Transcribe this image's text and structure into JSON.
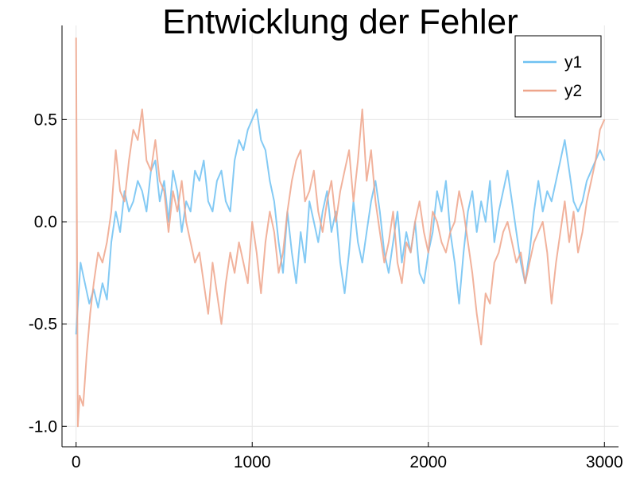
{
  "chart_data": {
    "type": "line",
    "title": "Entwicklung der Fehler",
    "xlabel": "",
    "ylabel": "",
    "xlim": [
      -80,
      3080
    ],
    "ylim": [
      -1.1,
      0.96
    ],
    "x_ticks": [
      0,
      1000,
      2000,
      3000
    ],
    "x_tick_labels": [
      "0",
      "1000",
      "2000",
      "3000"
    ],
    "y_ticks": [
      -1.0,
      -0.5,
      0.0,
      0.5
    ],
    "y_tick_labels": [
      "-1.0",
      "-0.5",
      "0.0",
      "0.5"
    ],
    "grid": true,
    "legend_position": "top-right",
    "series": [
      {
        "name": "y1",
        "color": "#6fc1f2",
        "x": [
          0,
          25,
          50,
          75,
          100,
          125,
          150,
          175,
          200,
          225,
          250,
          275,
          300,
          325,
          350,
          375,
          400,
          425,
          450,
          475,
          500,
          525,
          550,
          575,
          600,
          625,
          650,
          675,
          700,
          725,
          750,
          775,
          800,
          825,
          850,
          875,
          900,
          925,
          950,
          975,
          1000,
          1025,
          1050,
          1075,
          1100,
          1125,
          1150,
          1175,
          1200,
          1225,
          1250,
          1275,
          1300,
          1325,
          1350,
          1375,
          1400,
          1425,
          1450,
          1475,
          1500,
          1525,
          1550,
          1575,
          1600,
          1625,
          1650,
          1675,
          1700,
          1725,
          1750,
          1775,
          1800,
          1825,
          1850,
          1875,
          1900,
          1925,
          1950,
          1975,
          2000,
          2025,
          2050,
          2075,
          2100,
          2125,
          2150,
          2175,
          2200,
          2225,
          2250,
          2275,
          2300,
          2325,
          2350,
          2375,
          2400,
          2425,
          2450,
          2475,
          2500,
          2525,
          2550,
          2575,
          2600,
          2625,
          2650,
          2675,
          2700,
          2725,
          2750,
          2775,
          2800,
          2825,
          2850,
          2875,
          2900,
          2925,
          2950,
          2975,
          3000
        ],
        "y": [
          -0.55,
          -0.2,
          -0.3,
          -0.4,
          -0.33,
          -0.42,
          -0.3,
          -0.38,
          -0.1,
          0.05,
          -0.05,
          0.15,
          0.05,
          0.1,
          0.2,
          0.15,
          0.05,
          0.25,
          0.3,
          0.1,
          0.2,
          0.0,
          0.25,
          0.15,
          -0.05,
          0.1,
          0.05,
          0.25,
          0.2,
          0.3,
          0.1,
          0.05,
          0.2,
          0.25,
          0.1,
          0.05,
          0.3,
          0.4,
          0.35,
          0.45,
          0.5,
          0.55,
          0.4,
          0.35,
          0.2,
          0.1,
          -0.1,
          -0.25,
          0.05,
          -0.15,
          -0.3,
          -0.05,
          -0.2,
          0.1,
          0.0,
          -0.1,
          0.05,
          0.15,
          -0.05,
          0.05,
          -0.2,
          -0.35,
          -0.15,
          0.1,
          -0.1,
          -0.2,
          -0.05,
          0.1,
          0.2,
          0.05,
          -0.15,
          -0.25,
          -0.1,
          0.05,
          -0.2,
          -0.05,
          -0.15,
          0.0,
          -0.25,
          -0.3,
          -0.15,
          -0.05,
          0.15,
          0.05,
          0.2,
          -0.05,
          -0.2,
          -0.4,
          -0.15,
          0.05,
          0.15,
          -0.05,
          0.1,
          0.0,
          0.2,
          -0.1,
          0.05,
          0.15,
          0.25,
          0.1,
          -0.05,
          -0.2,
          -0.3,
          -0.15,
          0.05,
          0.2,
          0.05,
          0.15,
          0.1,
          0.2,
          0.3,
          0.4,
          0.25,
          0.1,
          0.05,
          0.1,
          0.2,
          0.25,
          0.3,
          0.35,
          0.3
        ]
      },
      {
        "name": "y2",
        "color": "#eea58b",
        "x": [
          0,
          10,
          20,
          40,
          60,
          80,
          100,
          125,
          150,
          175,
          200,
          225,
          250,
          275,
          300,
          325,
          350,
          375,
          400,
          425,
          450,
          475,
          500,
          525,
          550,
          575,
          600,
          625,
          650,
          675,
          700,
          725,
          750,
          775,
          800,
          825,
          850,
          875,
          900,
          925,
          950,
          975,
          1000,
          1025,
          1050,
          1075,
          1100,
          1125,
          1150,
          1175,
          1200,
          1225,
          1250,
          1275,
          1300,
          1325,
          1350,
          1375,
          1400,
          1425,
          1450,
          1475,
          1500,
          1525,
          1550,
          1575,
          1600,
          1625,
          1650,
          1675,
          1700,
          1725,
          1750,
          1775,
          1800,
          1825,
          1850,
          1875,
          1900,
          1925,
          1950,
          1975,
          2000,
          2025,
          2050,
          2075,
          2100,
          2125,
          2150,
          2175,
          2200,
          2225,
          2250,
          2275,
          2300,
          2325,
          2350,
          2375,
          2400,
          2425,
          2450,
          2475,
          2500,
          2525,
          2550,
          2575,
          2600,
          2625,
          2650,
          2675,
          2700,
          2725,
          2750,
          2775,
          2800,
          2825,
          2850,
          2875,
          2900,
          2925,
          2950,
          2975,
          3000
        ],
        "y": [
          0.9,
          -1.0,
          -0.85,
          -0.9,
          -0.65,
          -0.45,
          -0.3,
          -0.15,
          -0.2,
          -0.1,
          0.05,
          0.35,
          0.15,
          0.1,
          0.3,
          0.45,
          0.4,
          0.55,
          0.3,
          0.25,
          0.4,
          0.2,
          0.15,
          -0.05,
          0.15,
          0.05,
          0.2,
          0.0,
          -0.1,
          -0.2,
          -0.15,
          -0.3,
          -0.45,
          -0.2,
          -0.35,
          -0.5,
          -0.3,
          -0.15,
          -0.25,
          -0.1,
          -0.2,
          -0.3,
          0.0,
          -0.15,
          -0.35,
          -0.1,
          0.05,
          -0.05,
          -0.25,
          -0.15,
          0.05,
          0.2,
          0.3,
          0.35,
          0.1,
          0.15,
          0.25,
          0.05,
          -0.05,
          0.1,
          0.2,
          0.0,
          0.15,
          0.25,
          0.35,
          0.1,
          0.3,
          0.55,
          0.2,
          0.35,
          0.1,
          -0.05,
          -0.2,
          -0.1,
          0.05,
          -0.2,
          -0.3,
          -0.1,
          -0.15,
          0.0,
          0.1,
          -0.05,
          -0.15,
          0.05,
          0.0,
          -0.1,
          -0.15,
          -0.05,
          0.0,
          0.15,
          0.05,
          -0.1,
          -0.25,
          -0.45,
          -0.6,
          -0.35,
          -0.4,
          -0.2,
          -0.15,
          -0.05,
          0.0,
          -0.1,
          -0.2,
          -0.15,
          -0.3,
          -0.2,
          -0.1,
          -0.05,
          0.0,
          -0.15,
          -0.4,
          -0.2,
          -0.05,
          0.1,
          -0.1,
          0.05,
          -0.15,
          -0.05,
          0.1,
          0.2,
          0.3,
          0.45,
          0.5
        ]
      }
    ]
  }
}
